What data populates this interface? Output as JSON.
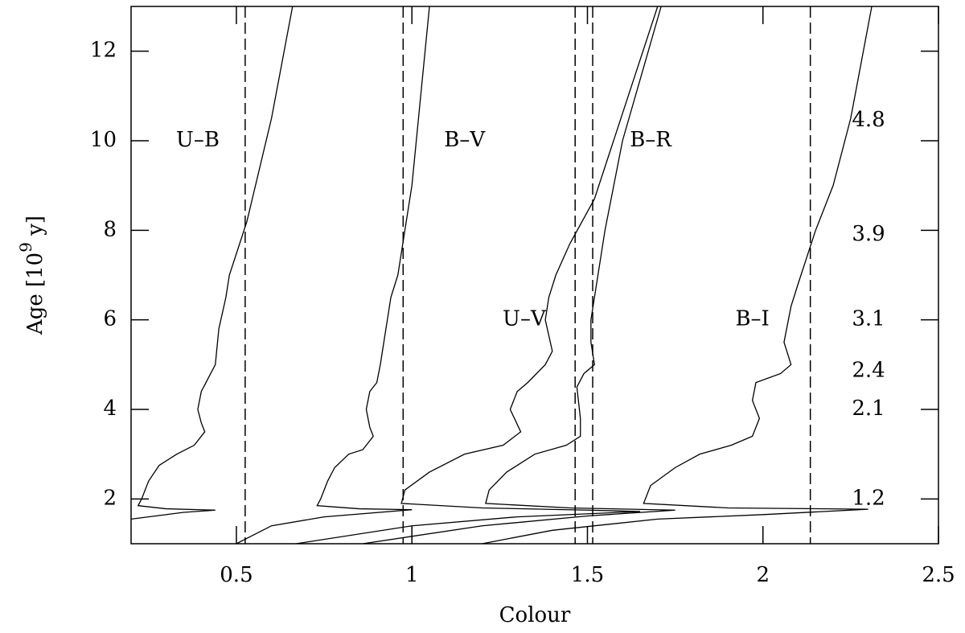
{
  "chart_data": {
    "type": "line",
    "xlabel": "Colour",
    "ylabel": "Age  [10",
    "ylabel_sup": "9",
    "ylabel_end": " y]",
    "xlim": [
      0.2,
      2.5
    ],
    "ylim": [
      1,
      13
    ],
    "xticks": [
      0.5,
      1,
      1.5,
      2,
      2.5
    ],
    "yticks": [
      2,
      4,
      6,
      8,
      10,
      12
    ],
    "color": "#000000",
    "vlines": [
      0.525,
      0.975,
      1.465,
      1.515,
      2.135
    ],
    "right_labels": [
      {
        "text": "4.8",
        "age": 10.45
      },
      {
        "text": "3.9",
        "age": 7.9
      },
      {
        "text": "3.1",
        "age": 6
      },
      {
        "text": "2.4",
        "age": 4.85
      },
      {
        "text": "2.1",
        "age": 4
      },
      {
        "text": "1.2",
        "age": 2
      }
    ],
    "series": [
      {
        "name": "U–B",
        "label_x": 0.39,
        "label_y": 10,
        "x": [
          0.66,
          0.6,
          0.53,
          0.48,
          0.47,
          0.45,
          0.44,
          0.42,
          0.4,
          0.39,
          0.4,
          0.41,
          0.38,
          0.33,
          0.28,
          0.25,
          0.23,
          0.22,
          0.3,
          0.44,
          0.35,
          0.2
        ],
        "values": [
          13,
          10.5,
          8.2,
          7,
          6.5,
          5.8,
          5,
          4.7,
          4.4,
          4,
          3.7,
          3.5,
          3.2,
          3,
          2.75,
          2.4,
          2,
          1.85,
          1.78,
          1.75,
          1.7,
          1.55
        ]
      },
      {
        "name": "B–V",
        "label_x": 1.15,
        "label_y": 10,
        "x": [
          1.05,
          1,
          0.98,
          0.96,
          0.94,
          0.93,
          0.92,
          0.91,
          0.9,
          0.88,
          0.87,
          0.88,
          0.89,
          0.86,
          0.82,
          0.78,
          0.76,
          0.74,
          0.73,
          0.85,
          1.0,
          0.75,
          0.6,
          0.5
        ],
        "values": [
          13,
          9,
          8,
          7,
          6.5,
          6,
          5.5,
          5,
          4.6,
          4.4,
          4,
          3.6,
          3.4,
          3.1,
          3,
          2.7,
          2.4,
          2,
          1.85,
          1.78,
          1.76,
          1.6,
          1.4,
          1
        ]
      },
      {
        "name": "U–V",
        "label_x": 1.32,
        "label_y": 6,
        "x": [
          1.7,
          1.52,
          1.45,
          1.41,
          1.39,
          1.38,
          1.4,
          1.38,
          1.33,
          1.3,
          1.28,
          1.31,
          1.26,
          1.15,
          1.05,
          0.98,
          0.97,
          1.2,
          1.5,
          1.65,
          1.3,
          1,
          0.67
        ],
        "values": [
          13,
          8.7,
          7.7,
          7,
          6.5,
          6,
          5.3,
          5,
          4.6,
          4.4,
          4,
          3.5,
          3.2,
          3,
          2.6,
          2.2,
          1.9,
          1.8,
          1.75,
          1.72,
          1.6,
          1.4,
          1
        ]
      },
      {
        "name": "B–R",
        "label_x": 1.68,
        "label_y": 10,
        "x": [
          1.71,
          1.6,
          1.55,
          1.53,
          1.52,
          1.51,
          1.51,
          1.52,
          1.49,
          1.47,
          1.48,
          1.48,
          1.44,
          1.35,
          1.27,
          1.22,
          1.21,
          1.45,
          1.75,
          1.5,
          1.2,
          0.86
        ],
        "values": [
          13,
          10,
          8,
          7,
          6.5,
          6,
          5.5,
          5,
          4.8,
          4.5,
          3.8,
          3.4,
          3.2,
          3,
          2.6,
          2.2,
          1.9,
          1.8,
          1.75,
          1.62,
          1.4,
          1
        ]
      },
      {
        "name": "B–I",
        "label_x": 1.97,
        "label_y": 6,
        "x": [
          2.31,
          2.25,
          2.2,
          2.15,
          2.1,
          2.08,
          2.06,
          2.08,
          2.05,
          1.98,
          1.97,
          1.99,
          1.97,
          1.91,
          1.82,
          1.75,
          1.68,
          1.66,
          1.9,
          2.3,
          2,
          1.7,
          1.4,
          1.2
        ],
        "values": [
          13,
          10.5,
          9,
          8,
          6.8,
          6.3,
          5.5,
          5,
          4.8,
          4.6,
          4.2,
          3.8,
          3.4,
          3.2,
          3,
          2.7,
          2.3,
          1.9,
          1.8,
          1.77,
          1.65,
          1.55,
          1.3,
          1
        ]
      }
    ]
  }
}
